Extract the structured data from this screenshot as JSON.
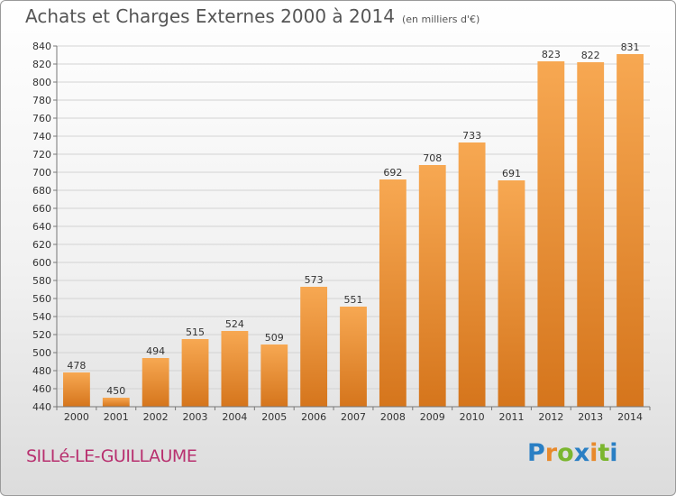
{
  "header": {
    "title": "Achats et Charges Externes 2000 à 2014",
    "unit": "(en milliers d'€)"
  },
  "footer": {
    "town": "SILLé-LE-GUILLAUME",
    "logo_letters": [
      "P",
      "r",
      "o",
      "x",
      "i",
      "t",
      "i"
    ],
    "logo_colors": [
      "#2a7fc4",
      "#e8892b",
      "#7bb62f",
      "#2a7fc4",
      "#e8892b",
      "#7bb62f",
      "#2a7fc4"
    ]
  },
  "colors": {
    "bar_top": "#f7a852",
    "bar_bottom": "#d5751c",
    "grid": "#d3d3d3",
    "axis": "#777777",
    "title": "#555555",
    "town": "#b8306f"
  },
  "chart_data": {
    "type": "bar",
    "title": "Achats et Charges Externes 2000 à 2014",
    "subtitle": "(en milliers d'€)",
    "categories": [
      "2000",
      "2001",
      "2002",
      "2003",
      "2004",
      "2005",
      "2006",
      "2007",
      "2008",
      "2009",
      "2010",
      "2011",
      "2012",
      "2013",
      "2014"
    ],
    "values": [
      478,
      450,
      494,
      515,
      524,
      509,
      573,
      551,
      692,
      708,
      733,
      691,
      823,
      822,
      831
    ],
    "ylim": [
      440,
      840
    ],
    "ytick_step": 20,
    "grid": true,
    "legend": "none",
    "data_labels": true
  }
}
